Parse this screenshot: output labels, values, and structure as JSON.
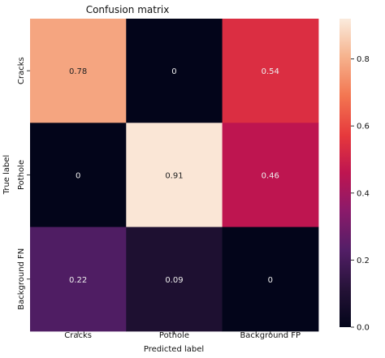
{
  "chart_data": {
    "type": "heatmap",
    "title": "Confusion matrix",
    "xlabel": "Predicted label",
    "ylabel": "True label",
    "x_categories": [
      "Cracks",
      "Pothole",
      "Background FP"
    ],
    "y_categories": [
      "Cracks",
      "Pothole",
      "Background FN"
    ],
    "values": [
      [
        0.78,
        0,
        0.54
      ],
      [
        0,
        0.91,
        0.46
      ],
      [
        0.22,
        0.09,
        0
      ]
    ],
    "value_labels": [
      [
        "0.78",
        "0",
        "0.54"
      ],
      [
        "0",
        "0.91",
        "0.46"
      ],
      [
        "0.22",
        "0.09",
        "0"
      ]
    ],
    "colormap": "rocket",
    "colorbar": {
      "range": [
        0,
        0.92
      ],
      "ticks": [
        0.0,
        0.2,
        0.4,
        0.6,
        0.8
      ],
      "tick_labels": [
        "0.0",
        "0.2",
        "0.4",
        "0.6",
        "0.8"
      ]
    },
    "grid": false
  }
}
